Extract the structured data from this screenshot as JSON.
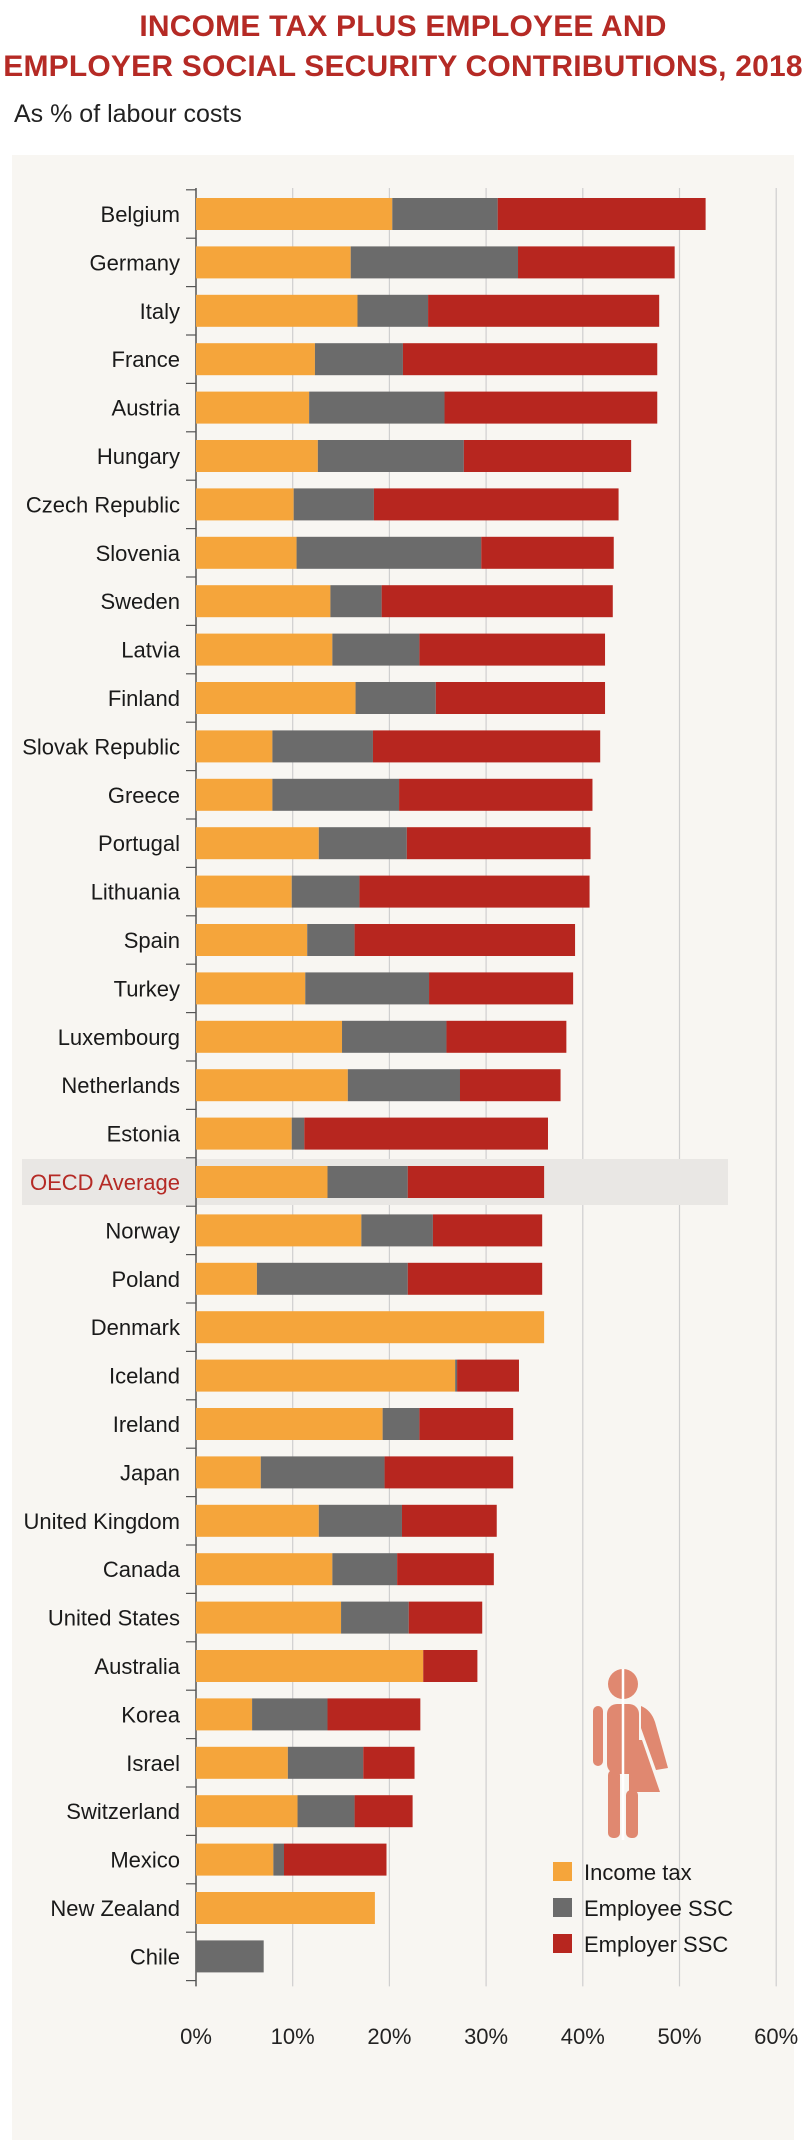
{
  "chart_data": {
    "type": "bar",
    "orientation": "horizontal",
    "stacked": true,
    "title_line1": "INCOME TAX PLUS EMPLOYEE AND",
    "title_line2": "EMPLOYER SOCIAL SECURITY CONTRIBUTIONS, 2018",
    "subtitle": "As % of labour costs",
    "xlim": [
      0,
      60
    ],
    "ticks": [
      0,
      10,
      20,
      30,
      40,
      50,
      60
    ],
    "tick_labels": [
      "0%",
      "10%",
      "20%",
      "30%",
      "40%",
      "50%",
      "60%"
    ],
    "grid": true,
    "legend_position": "bottom-right",
    "highlight_category": "OECD Average",
    "categories": [
      "Belgium",
      "Germany",
      "Italy",
      "France",
      "Austria",
      "Hungary",
      "Czech Republic",
      "Slovenia",
      "Sweden",
      "Latvia",
      "Finland",
      "Slovak Republic",
      "Greece",
      "Portugal",
      "Lithuania",
      "Spain",
      "Turkey",
      "Luxembourg",
      "Netherlands",
      "Estonia",
      "OECD Average",
      "Norway",
      "Poland",
      "Denmark",
      "Iceland",
      "Ireland",
      "Japan",
      "United Kingdom",
      "Canada",
      "United States",
      "Australia",
      "Korea",
      "Israel",
      "Switzerland",
      "Mexico",
      "New Zealand",
      "Chile"
    ],
    "series": [
      {
        "name": "Income tax",
        "color": "#f5a53b",
        "values": [
          20.3,
          16.0,
          16.7,
          12.3,
          11.7,
          12.6,
          10.1,
          10.4,
          13.9,
          14.1,
          16.5,
          7.9,
          7.9,
          12.7,
          9.9,
          11.5,
          11.3,
          15.1,
          15.7,
          9.9,
          13.6,
          17.1,
          6.3,
          36.0,
          26.8,
          19.3,
          6.7,
          12.7,
          14.1,
          15.0,
          23.5,
          5.8,
          9.5,
          10.5,
          8.0,
          18.5,
          0.0
        ]
      },
      {
        "name": "Employee SSC",
        "color": "#6b6b6b",
        "values": [
          10.9,
          17.3,
          7.3,
          9.1,
          14.0,
          15.1,
          8.3,
          19.1,
          5.3,
          9.0,
          8.3,
          10.4,
          13.1,
          9.1,
          7.0,
          4.9,
          12.8,
          10.8,
          11.6,
          1.3,
          8.3,
          7.4,
          15.6,
          0.0,
          0.2,
          3.8,
          12.8,
          8.6,
          6.7,
          7.0,
          0.0,
          7.8,
          7.8,
          5.9,
          1.1,
          0.0,
          7.0
        ]
      },
      {
        "name": "Employer SSC",
        "color": "#b7261f",
        "values": [
          21.5,
          16.2,
          23.9,
          26.3,
          22.0,
          17.3,
          25.3,
          13.7,
          23.9,
          19.2,
          17.5,
          23.5,
          20.0,
          19.0,
          23.8,
          22.8,
          14.9,
          12.4,
          10.4,
          25.2,
          14.1,
          11.3,
          13.9,
          0.0,
          6.4,
          9.7,
          13.3,
          9.8,
          10.0,
          7.6,
          5.6,
          9.6,
          5.3,
          6.0,
          10.6,
          0.0,
          0.0
        ]
      }
    ]
  }
}
